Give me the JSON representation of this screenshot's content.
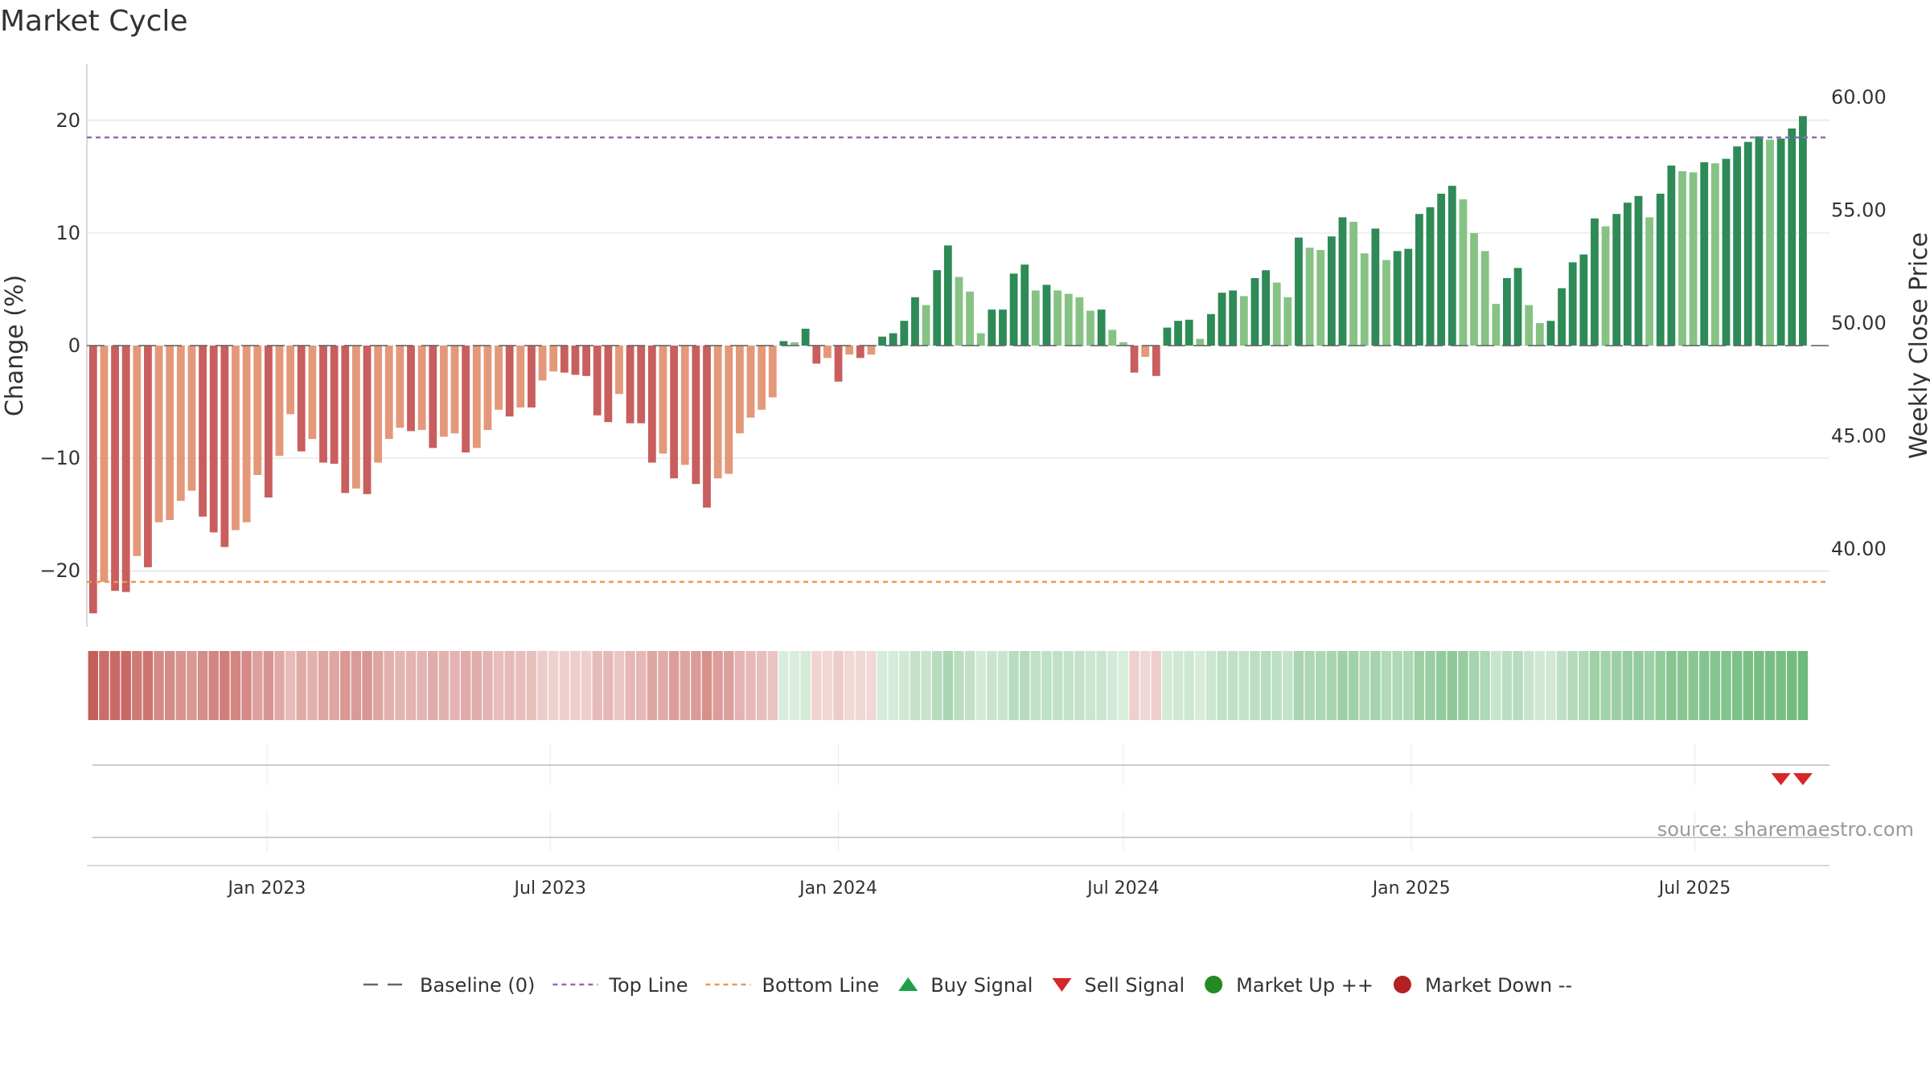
{
  "chart_data": {
    "type": "bar",
    "title": "Market Cycle",
    "ylabel": "Change (%)",
    "y2label": "Weekly Close Price",
    "ylim": [
      -25,
      25
    ],
    "yticks": [
      20,
      10,
      0,
      -10,
      -20
    ],
    "ytick_labels": [
      "20",
      "10",
      "0",
      "−10",
      "−20"
    ],
    "y2lim": [
      37.55,
      62.45
    ],
    "y2ticks": [
      60,
      55,
      50,
      45,
      40
    ],
    "y2tick_labels": [
      "60.00",
      "55.00",
      "50.00",
      "45.00",
      "40.00"
    ],
    "x_start": "2022-09-12",
    "x_step_days": 7,
    "xlim": [
      "2022-09-08",
      "2025-09-25"
    ],
    "xticks": [
      "2023-01-01",
      "2023-07-01",
      "2024-01-01",
      "2024-07-01",
      "2025-01-01",
      "2025-07-01"
    ],
    "xtick_labels": [
      "Jan 2023",
      "Jul 2023",
      "Jan 2024",
      "Jul 2024",
      "Jan 2025",
      "Jul 2025"
    ],
    "top_line": 18.5,
    "bottom_line": -21,
    "values": [
      -23.8,
      -21,
      -21.8,
      -21.9,
      -18.7,
      -19.7,
      -15.7,
      -15.5,
      -13.8,
      -12.9,
      -15.2,
      -16.6,
      -17.9,
      -16.4,
      -15.7,
      -11.5,
      -13.5,
      -9.8,
      -6.1,
      -9.4,
      -8.3,
      -10.4,
      -10.5,
      -13.1,
      -12.7,
      -13.2,
      -10.4,
      -8.3,
      -7.3,
      -7.6,
      -7.5,
      -9.1,
      -8.1,
      -7.8,
      -9.5,
      -9.1,
      -7.5,
      -5.7,
      -6.3,
      -5.5,
      -5.5,
      -3.1,
      -2.3,
      -2.4,
      -2.6,
      -2.7,
      -6.2,
      -6.8,
      -4.3,
      -6.9,
      -6.9,
      -10.4,
      -9.6,
      -11.8,
      -10.6,
      -12.3,
      -14.4,
      -11.8,
      -11.4,
      -7.8,
      -6.4,
      -5.7,
      -4.6,
      0.4,
      0.3,
      1.5,
      -1.6,
      -1.1,
      -3.2,
      -0.8,
      -1.1,
      -0.8,
      0.8,
      1.1,
      2.2,
      4.3,
      3.6,
      6.7,
      8.9,
      6.1,
      4.8,
      1.1,
      3.2,
      3.2,
      6.4,
      7.2,
      4.9,
      5.4,
      4.9,
      4.6,
      4.3,
      3.1,
      3.2,
      1.4,
      0.3,
      -2.4,
      -1,
      -2.7,
      1.6,
      2.2,
      2.3,
      0.6,
      2.8,
      4.7,
      4.9,
      4.4,
      6,
      6.7,
      5.6,
      4.3,
      9.6,
      8.7,
      8.5,
      9.7,
      11.4,
      11,
      8.2,
      10.4,
      7.6,
      8.4,
      8.6,
      11.7,
      12.3,
      13.5,
      14.2,
      13,
      10,
      8.4,
      3.7,
      6,
      6.9,
      3.6,
      2,
      2.2,
      5.1,
      7.4,
      8.1,
      11.3,
      10.6,
      11.7,
      12.7,
      13.3,
      11.4,
      13.5,
      16,
      15.5,
      15.4,
      16.3,
      16.2,
      16.6,
      17.7,
      18.1,
      18.6,
      18.3,
      18.4,
      19.3,
      20.4
    ],
    "series": [
      {
        "name": "Baseline (0)"
      },
      {
        "name": "Top Line"
      },
      {
        "name": "Bottom Line"
      },
      {
        "name": "Buy Signal"
      },
      {
        "name": "Sell Signal"
      },
      {
        "name": "Market Up ++"
      },
      {
        "name": "Market Down --"
      }
    ],
    "sell_signals": [
      "2025-08-25",
      "2025-09-08"
    ],
    "buy_signals": [],
    "grid": true,
    "legend_position": "bottom",
    "source": "source: sharemaestro.com",
    "colors": {
      "strong_down": "#c95e5e",
      "weak_down": "#e4987a",
      "strong_up": "#2e8a57",
      "weak_up": "#87c285",
      "top_line": "#9467bd",
      "bottom_line": "#e8994f",
      "baseline": "#666666",
      "buy": "#1fa046",
      "sell": "#d62728",
      "market_up": "#228b22",
      "market_down": "#b22222"
    }
  }
}
